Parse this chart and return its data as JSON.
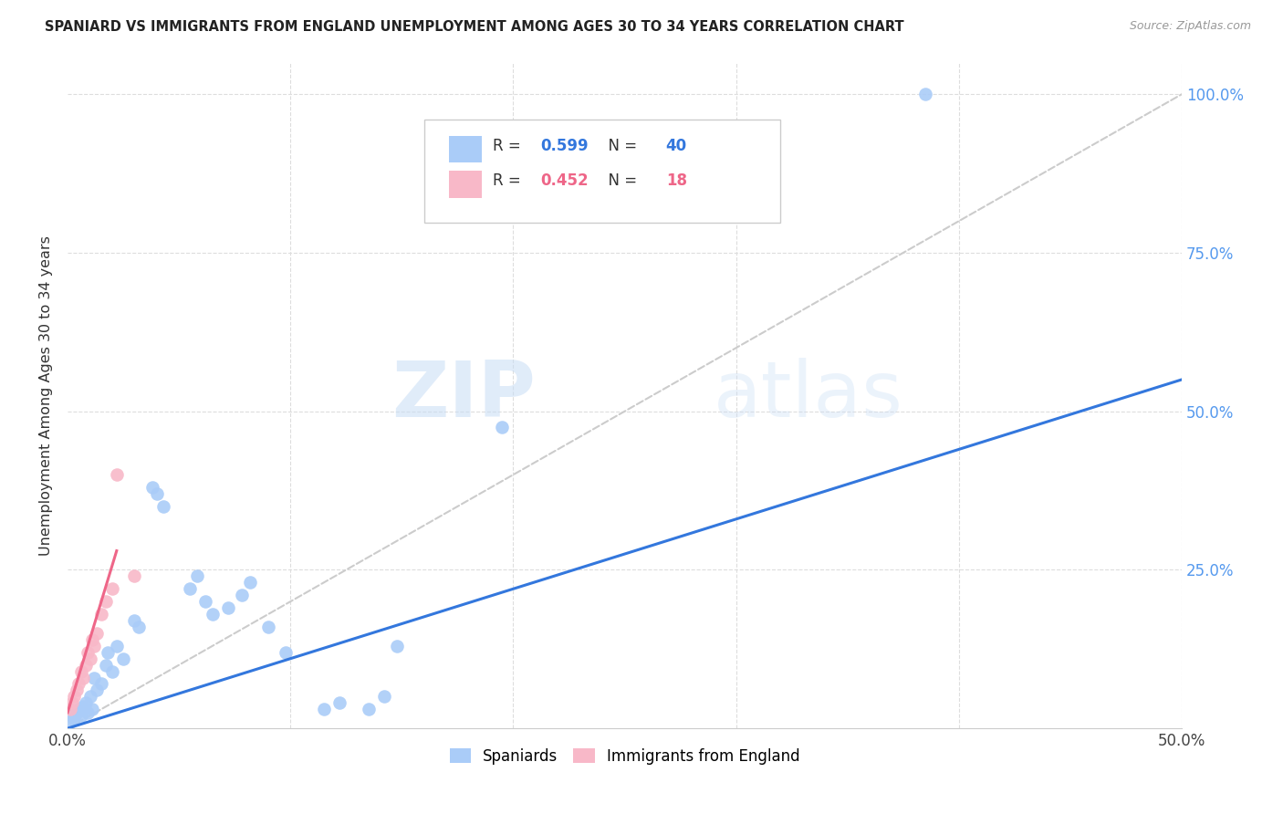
{
  "title": "SPANIARD VS IMMIGRANTS FROM ENGLAND UNEMPLOYMENT AMONG AGES 30 TO 34 YEARS CORRELATION CHART",
  "source": "Source: ZipAtlas.com",
  "ylabel": "Unemployment Among Ages 30 to 34 years",
  "xlim": [
    0.0,
    0.5
  ],
  "ylim": [
    0.0,
    1.05
  ],
  "spaniards_x": [
    0.001,
    0.002,
    0.003,
    0.004,
    0.005,
    0.006,
    0.007,
    0.008,
    0.009,
    0.01,
    0.011,
    0.012,
    0.013,
    0.015,
    0.017,
    0.018,
    0.02,
    0.022,
    0.025,
    0.03,
    0.032,
    0.038,
    0.04,
    0.043,
    0.055,
    0.058,
    0.062,
    0.065,
    0.072,
    0.078,
    0.082,
    0.09,
    0.098,
    0.115,
    0.122,
    0.135,
    0.142,
    0.148,
    0.195,
    0.385
  ],
  "spaniards_y": [
    0.01,
    0.02,
    0.015,
    0.025,
    0.03,
    0.02,
    0.035,
    0.04,
    0.025,
    0.05,
    0.03,
    0.08,
    0.06,
    0.07,
    0.1,
    0.12,
    0.09,
    0.13,
    0.11,
    0.17,
    0.16,
    0.38,
    0.37,
    0.35,
    0.22,
    0.24,
    0.2,
    0.18,
    0.19,
    0.21,
    0.23,
    0.16,
    0.12,
    0.03,
    0.04,
    0.03,
    0.05,
    0.13,
    0.475,
    1.0
  ],
  "england_x": [
    0.001,
    0.002,
    0.003,
    0.004,
    0.005,
    0.006,
    0.007,
    0.008,
    0.009,
    0.01,
    0.011,
    0.012,
    0.013,
    0.015,
    0.017,
    0.02,
    0.022,
    0.03
  ],
  "england_y": [
    0.03,
    0.04,
    0.05,
    0.06,
    0.07,
    0.09,
    0.08,
    0.1,
    0.12,
    0.11,
    0.14,
    0.13,
    0.15,
    0.18,
    0.2,
    0.22,
    0.4,
    0.24
  ],
  "spaniard_color": "#aaccf8",
  "england_color": "#f8b8c8",
  "spaniard_line_color": "#3377dd",
  "england_line_color": "#ee6688",
  "diagonal_color": "#cccccc",
  "watermark_zip": "ZIP",
  "watermark_atlas": "atlas",
  "R_spaniard": "0.599",
  "N_spaniard": "40",
  "R_england": "0.452",
  "N_england": "18",
  "legend_labels": [
    "Spaniards",
    "Immigrants from England"
  ],
  "blue_line_x": [
    0.0,
    0.5
  ],
  "blue_line_y": [
    0.0,
    0.55
  ],
  "pink_line_x": [
    0.0,
    0.022
  ],
  "pink_line_y": [
    0.025,
    0.28
  ]
}
